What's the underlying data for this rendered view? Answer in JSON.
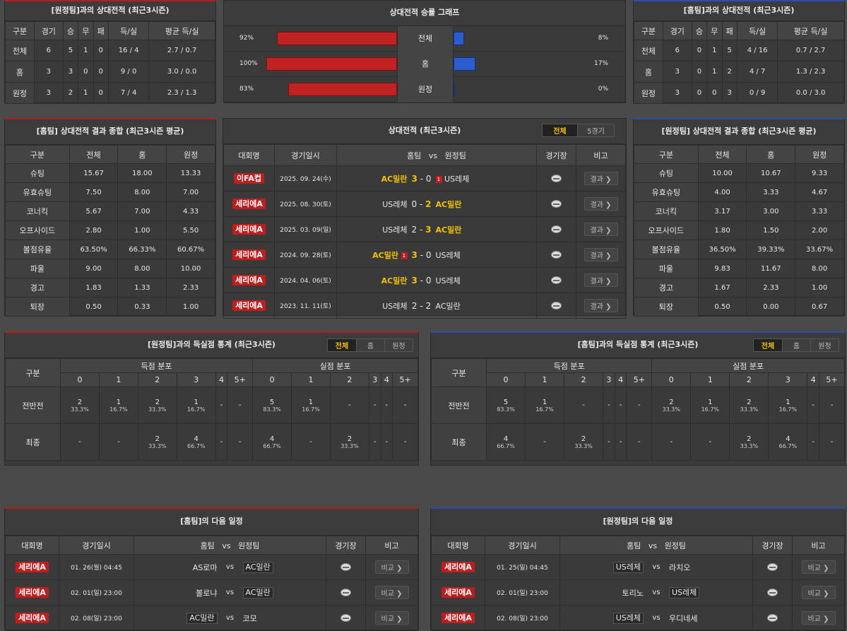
{
  "h2h_away": {
    "title": "[원정팀]과의 상대전적 (최근3시즌)",
    "headers": [
      "구분",
      "경기",
      "승",
      "무",
      "패",
      "득/실",
      "평균 득/실"
    ],
    "rows": [
      [
        "전체",
        "6",
        "5",
        "1",
        "0",
        "16 / 4",
        "2.7 / 0.7"
      ],
      [
        "홈",
        "3",
        "3",
        "0",
        "0",
        "9 / 0",
        "3.0 / 0.0"
      ],
      [
        "원정",
        "3",
        "2",
        "1",
        "0",
        "7 / 4",
        "2.3 / 1.3"
      ]
    ]
  },
  "win_graph": {
    "title": "상대전적 승률 그래프",
    "rows": [
      {
        "label": "전체",
        "left": "92%",
        "right": "8%",
        "lv": 92,
        "rv": 8
      },
      {
        "label": "홈",
        "left": "100%",
        "right": "17%",
        "lv": 100,
        "rv": 17
      },
      {
        "label": "원정",
        "left": "83%",
        "right": "0%",
        "lv": 83,
        "rv": 0
      }
    ]
  },
  "h2h_home": {
    "title": "[홈팀]과의 상대전적 (최근3시즌)",
    "headers": [
      "구분",
      "경기",
      "승",
      "무",
      "패",
      "득/실",
      "평균 득/실"
    ],
    "rows": [
      [
        "전체",
        "6",
        "0",
        "1",
        "5",
        "4 / 16",
        "0.7 / 2.7"
      ],
      [
        "홈",
        "3",
        "0",
        "1",
        "2",
        "4 / 7",
        "1.3 / 2.3"
      ],
      [
        "원정",
        "3",
        "0",
        "0",
        "3",
        "0 / 9",
        "0.0 / 3.0"
      ]
    ]
  },
  "summary_home": {
    "title": "[홈팀] 상대전적 결과 종합 (최근3시즌 평균)",
    "headers": [
      "구분",
      "전체",
      "홈",
      "원정"
    ],
    "rows": [
      [
        "슈팅",
        "15.67",
        "18.00",
        "13.33"
      ],
      [
        "유효슈팅",
        "7.50",
        "8.00",
        "7.00"
      ],
      [
        "코너킥",
        "5.67",
        "7.00",
        "4.33"
      ],
      [
        "오프사이드",
        "2.80",
        "1.00",
        "5.50"
      ],
      [
        "볼점유율",
        "63.50%",
        "66.33%",
        "60.67%"
      ],
      [
        "파울",
        "9.00",
        "8.00",
        "10.00"
      ],
      [
        "경고",
        "1.83",
        "1.33",
        "2.33"
      ],
      [
        "퇴장",
        "0.50",
        "0.33",
        "1.00"
      ]
    ]
  },
  "summary_away": {
    "title": "[원정팀] 상대전적 결과 종합 (최근3시즌 평균)",
    "headers": [
      "구분",
      "전체",
      "홈",
      "원정"
    ],
    "rows": [
      [
        "슈팅",
        "10.00",
        "10.67",
        "9.33"
      ],
      [
        "유효슈팅",
        "4.00",
        "3.33",
        "4.67"
      ],
      [
        "코너킥",
        "3.17",
        "3.00",
        "3.33"
      ],
      [
        "오프사이드",
        "1.80",
        "1.50",
        "2.00"
      ],
      [
        "볼점유율",
        "36.50%",
        "39.33%",
        "33.67%"
      ],
      [
        "파울",
        "9.83",
        "11.67",
        "8.00"
      ],
      [
        "경고",
        "1.67",
        "2.33",
        "1.00"
      ],
      [
        "퇴장",
        "0.50",
        "0.00",
        "0.67"
      ]
    ]
  },
  "matches": {
    "title": "상대전적 (최근3시즌)",
    "tabs": [
      "전체",
      "5경기"
    ],
    "headers": {
      "league": "대회명",
      "date": "경기일시",
      "home": "홈팀",
      "vs": "vs",
      "away": "원정팀",
      "venue": "경기장",
      "note": "비고"
    },
    "result_label": "결과 ❯",
    "rows": [
      {
        "league": "이FA컵",
        "date": "2025. 09. 24(수)",
        "home": "AC밀란",
        "hs": "3",
        "as": "0",
        "away": "US레체",
        "win": "home",
        "hred": "",
        "ared": "1"
      },
      {
        "league": "세리에A",
        "date": "2025. 08. 30(토)",
        "home": "US레체",
        "hs": "0",
        "as": "2",
        "away": "AC밀란",
        "win": "away",
        "hred": "",
        "ared": ""
      },
      {
        "league": "세리에A",
        "date": "2025. 03. 09(일)",
        "home": "US레체",
        "hs": "2",
        "as": "3",
        "away": "AC밀란",
        "win": "away",
        "hred": "",
        "ared": ""
      },
      {
        "league": "세리에A",
        "date": "2024. 09. 28(토)",
        "home": "AC밀란",
        "hs": "3",
        "as": "0",
        "away": "US레체",
        "win": "home",
        "hred": "1",
        "ared": ""
      },
      {
        "league": "세리에A",
        "date": "2024. 04. 06(토)",
        "home": "AC밀란",
        "hs": "3",
        "as": "0",
        "away": "US레체",
        "win": "home",
        "hred": "",
        "ared": ""
      },
      {
        "league": "세리에A",
        "date": "2023. 11. 11(토)",
        "home": "US레체",
        "hs": "2",
        "as": "2",
        "away": "AC밀란",
        "win": "draw",
        "hred": "",
        "ared": ""
      }
    ]
  },
  "goals_away": {
    "title": "[원정팀]과의 득실점 통계 (최근3시즌)",
    "tabs": [
      "전체",
      "홈",
      "원정"
    ],
    "col_label": "구분",
    "scored_label": "득점 분포",
    "conceded_label": "실점 분포",
    "cols": [
      "0",
      "1",
      "2",
      "3",
      "4",
      "5+"
    ],
    "rows": [
      {
        "label": "전반전",
        "scored": [
          [
            "2",
            "33.3%"
          ],
          [
            "1",
            "16.7%"
          ],
          [
            "2",
            "33.3%"
          ],
          [
            "1",
            "16.7%"
          ],
          [
            "-",
            ""
          ],
          [
            "-",
            ""
          ]
        ],
        "conceded": [
          [
            "5",
            "83.3%"
          ],
          [
            "1",
            "16.7%"
          ],
          [
            "-",
            ""
          ],
          [
            "-",
            ""
          ],
          [
            "-",
            ""
          ],
          [
            "-",
            ""
          ]
        ]
      },
      {
        "label": "최종",
        "scored": [
          [
            "-",
            ""
          ],
          [
            "-",
            ""
          ],
          [
            "2",
            "33.3%"
          ],
          [
            "4",
            "66.7%"
          ],
          [
            "-",
            ""
          ],
          [
            "-",
            ""
          ]
        ],
        "conceded": [
          [
            "4",
            "66.7%"
          ],
          [
            "-",
            ""
          ],
          [
            "2",
            "33.3%"
          ],
          [
            "-",
            ""
          ],
          [
            "-",
            ""
          ],
          [
            "-",
            ""
          ]
        ]
      }
    ]
  },
  "goals_home": {
    "title": "[홈팀]과의 득실점 통계 (최근3시즌)",
    "tabs": [
      "전체",
      "홈",
      "원정"
    ],
    "col_label": "구분",
    "scored_label": "득점 분포",
    "conceded_label": "실점 분포",
    "cols": [
      "0",
      "1",
      "2",
      "3",
      "4",
      "5+"
    ],
    "rows": [
      {
        "label": "전반전",
        "scored": [
          [
            "5",
            "83.3%"
          ],
          [
            "1",
            "16.7%"
          ],
          [
            "-",
            ""
          ],
          [
            "-",
            ""
          ],
          [
            "-",
            ""
          ],
          [
            "-",
            ""
          ]
        ],
        "conceded": [
          [
            "2",
            "33.3%"
          ],
          [
            "1",
            "16.7%"
          ],
          [
            "2",
            "33.3%"
          ],
          [
            "1",
            "16.7%"
          ],
          [
            "-",
            ""
          ],
          [
            "-",
            ""
          ]
        ]
      },
      {
        "label": "최종",
        "scored": [
          [
            "4",
            "66.7%"
          ],
          [
            "-",
            ""
          ],
          [
            "2",
            "33.3%"
          ],
          [
            "-",
            ""
          ],
          [
            "-",
            ""
          ],
          [
            "-",
            ""
          ]
        ],
        "conceded": [
          [
            "-",
            ""
          ],
          [
            "-",
            ""
          ],
          [
            "2",
            "33.3%"
          ],
          [
            "4",
            "66.7%"
          ],
          [
            "-",
            ""
          ],
          [
            "-",
            ""
          ]
        ]
      }
    ]
  },
  "next_home": {
    "title": "[홈팀]의 다음 일정",
    "headers": {
      "league": "대회명",
      "date": "경기일시",
      "home": "홈팀",
      "vs": "vs",
      "away": "원정팀",
      "venue": "경기장",
      "note": "비고"
    },
    "btn_label": "비교 ❯",
    "rows": [
      {
        "league": "세리에A",
        "date": "01. 26(월) 04:45",
        "home": "AS로마",
        "away": "AC밀란",
        "mark": "away"
      },
      {
        "league": "세리에A",
        "date": "02. 01(일) 23:00",
        "home": "볼로냐",
        "away": "AC밀란",
        "mark": "away"
      },
      {
        "league": "세리에A",
        "date": "02. 08(일) 23:00",
        "home": "AC밀란",
        "away": "코모",
        "mark": "home"
      }
    ]
  },
  "next_away": {
    "title": "[원정팀]의 다음 일정",
    "headers": {
      "league": "대회명",
      "date": "경기일시",
      "home": "홈팀",
      "vs": "vs",
      "away": "원정팀",
      "venue": "경기장",
      "note": "비고"
    },
    "btn_label": "비교 ❯",
    "rows": [
      {
        "league": "세리에A",
        "date": "01. 25(일) 04:45",
        "home": "US레체",
        "away": "라치오",
        "mark": "home"
      },
      {
        "league": "세리에A",
        "date": "02. 01(일) 23:00",
        "home": "토리노",
        "away": "US레체",
        "mark": "away"
      },
      {
        "league": "세리에A",
        "date": "02. 08(일) 23:00",
        "home": "US레체",
        "away": "우디네세",
        "mark": "home"
      }
    ]
  },
  "colors": {
    "home_bar": "#c02222",
    "away_bar": "#2b5dd0",
    "highlight": "#f2c200",
    "badge": "#c01e1e",
    "home_accent": "#b81e1e",
    "away_accent": "#2a4fb0"
  },
  "icons": {
    "venue": "stadium-icon",
    "red_card": "red-card-icon",
    "arrow": "chevron-right-icon"
  }
}
